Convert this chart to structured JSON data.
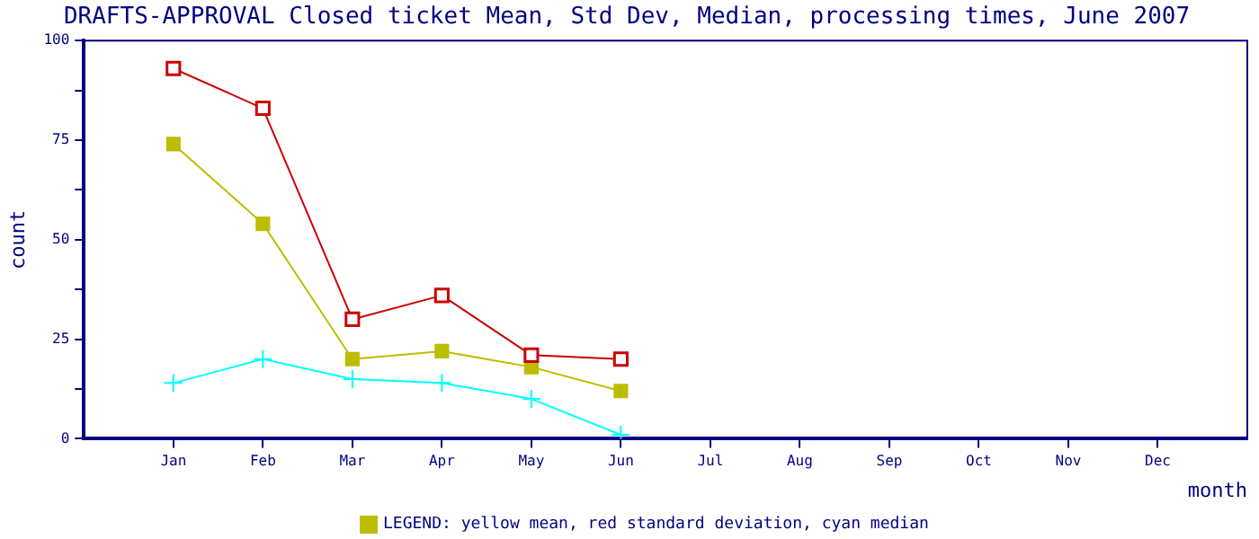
{
  "chart_data": {
    "type": "line",
    "title": "DRAFTS-APPROVAL Closed ticket Mean, Std Dev, Median, processing times, June 2007",
    "xlabel": "month",
    "ylabel": "count",
    "categories": [
      "Jan",
      "Feb",
      "Mar",
      "Apr",
      "May",
      "Jun",
      "Jul",
      "Aug",
      "Sep",
      "Oct",
      "Nov",
      "Dec"
    ],
    "series": [
      {
        "color": "#cc0000",
        "marker": "square",
        "values": [
          93,
          83,
          30,
          36,
          21,
          20,
          null,
          null,
          null,
          null,
          null,
          null
        ]
      },
      {
        "color": "#bdbd00",
        "marker": "square",
        "values": [
          74,
          54,
          20,
          22,
          18,
          12,
          null,
          null,
          null,
          null,
          null,
          null
        ]
      },
      {
        "color": "#00ffff",
        "marker": "cross",
        "values": [
          14,
          20,
          15,
          14,
          10,
          1,
          null,
          null,
          null,
          null,
          null,
          null
        ]
      }
    ],
    "ylim": [
      0,
      100
    ],
    "yticks": [
      0,
      {
        "value": 12.5,
        "label": null
      },
      25,
      {
        "value": 37.5,
        "label": null
      },
      50,
      {
        "value": 62.5,
        "label": null
      },
      75,
      {
        "value": 87.5,
        "label": null
      },
      100
    ],
    "grid": false,
    "annotations": [
      "LEGEND: yellow mean, red standard deviation, cyan median"
    ]
  }
}
